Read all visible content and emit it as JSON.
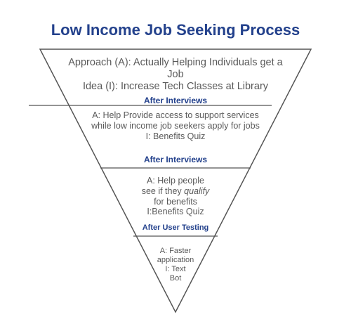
{
  "title": "Low Income Job Seeking Process",
  "stages": [
    {
      "lines": [
        "Approach (A):  Actually Helping Individuals get a",
        "Job",
        "Idea (I): Increase Tech Classes at Library"
      ],
      "label": "After Interviews"
    },
    {
      "lines": [
        "A: Help Provide access to support services",
        "while low income job seekers apply for jobs",
        "I: Benefits Quiz"
      ],
      "label": "After Interviews"
    },
    {
      "lines": [
        "A: Help people",
        "see if they ",
        "qualify",
        "for benefits",
        "I:Benefits Quiz"
      ],
      "label": "After User Testing"
    },
    {
      "lines": [
        "A: Faster",
        "application",
        "I: Text",
        "Bot"
      ]
    }
  ],
  "colors": {
    "title": "#23418c",
    "label": "#23418c",
    "text": "#595959",
    "outline": "#555555"
  }
}
